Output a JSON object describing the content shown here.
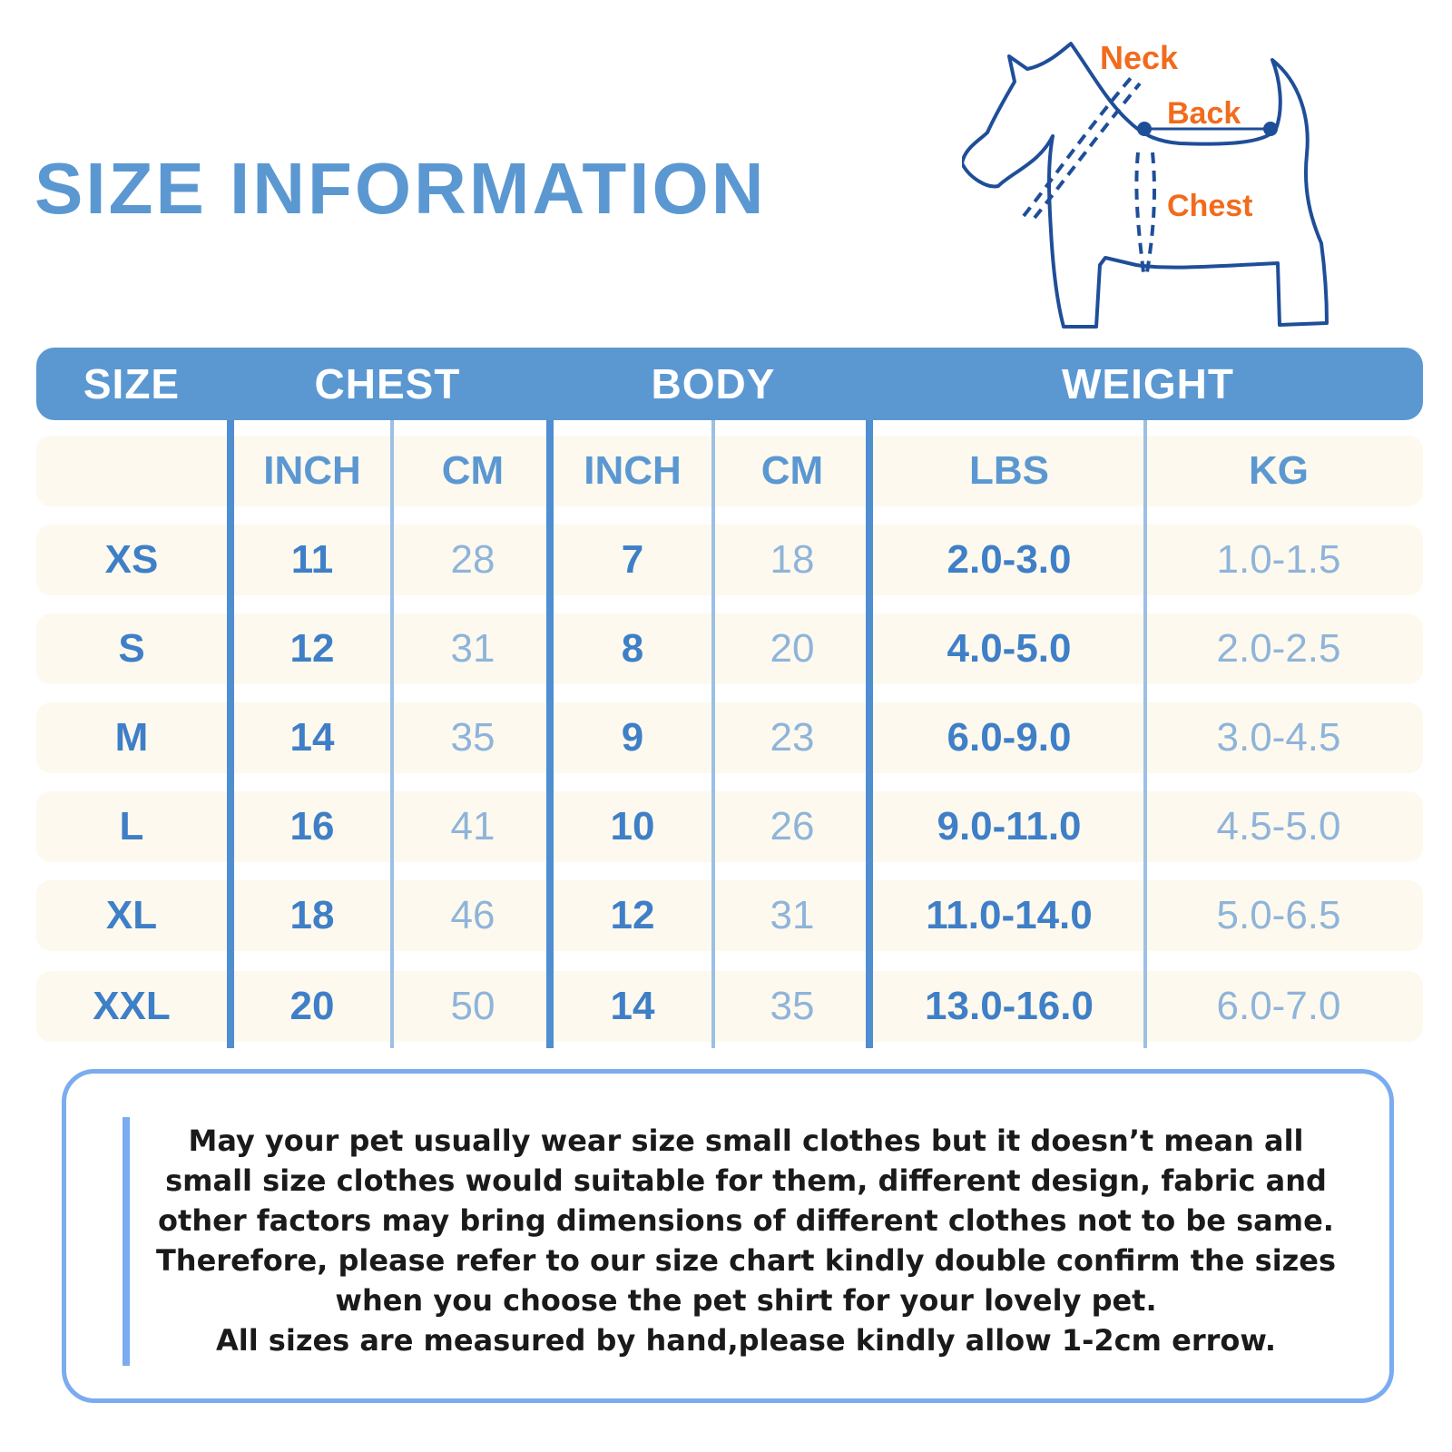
{
  "title": "SIZE INFORMATION",
  "diagram": {
    "labels": {
      "neck": "Neck",
      "back": "Back",
      "chest": "Chest"
    },
    "label_color": "#f26b1d",
    "outline_color": "#1f4e99"
  },
  "table": {
    "group_headers": [
      "SIZE",
      "CHEST",
      "BODY",
      "WEIGHT"
    ],
    "units": [
      "",
      "INCH",
      "CM",
      "INCH",
      "CM",
      "LBS",
      "KG"
    ],
    "rows": [
      {
        "size": "XS",
        "chest_inch": "11",
        "chest_cm": "28",
        "body_inch": "7",
        "body_cm": "18",
        "lbs": "2.0-3.0",
        "kg": "1.0-1.5"
      },
      {
        "size": "S",
        "chest_inch": "12",
        "chest_cm": "31",
        "body_inch": "8",
        "body_cm": "20",
        "lbs": "4.0-5.0",
        "kg": "2.0-2.5"
      },
      {
        "size": "M",
        "chest_inch": "14",
        "chest_cm": "35",
        "body_inch": "9",
        "body_cm": "23",
        "lbs": "6.0-9.0",
        "kg": "3.0-4.5"
      },
      {
        "size": "L",
        "chest_inch": "16",
        "chest_cm": "41",
        "body_inch": "10",
        "body_cm": "26",
        "lbs": "9.0-11.0",
        "kg": "4.5-5.0"
      },
      {
        "size": "XL",
        "chest_inch": "18",
        "chest_cm": "46",
        "body_inch": "12",
        "body_cm": "31",
        "lbs": "11.0-14.0",
        "kg": "5.0-6.5"
      },
      {
        "size": "XXL",
        "chest_inch": "20",
        "chest_cm": "50",
        "body_inch": "14",
        "body_cm": "35",
        "lbs": "13.0-16.0",
        "kg": "6.0-7.0"
      }
    ]
  },
  "note": {
    "lines": [
      "May your pet usually wear size small clothes but it doesn’t mean all",
      "small size clothes would suitable for them, different design, fabric and",
      "other factors may bring dimensions of different clothes not to be same.",
      "Therefore, please refer to our size chart kindly double confirm the sizes",
      "when you choose the pet shirt for your lovely pet.",
      "All sizes are measured by hand,please kindly allow 1-2cm errow."
    ]
  },
  "colors": {
    "accent": "#5b98d2",
    "row_background": "#fdf9ee",
    "note_border": "#7aacef"
  }
}
